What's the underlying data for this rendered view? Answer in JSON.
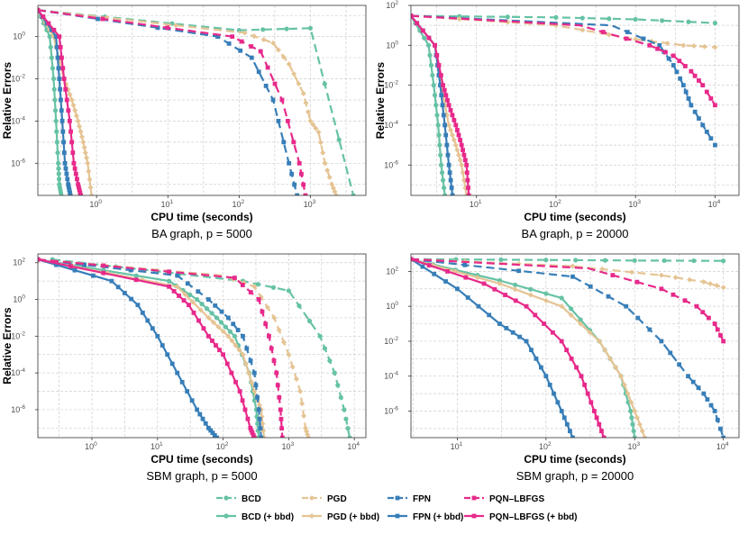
{
  "chart_data": [
    {
      "type": "line",
      "caption": "BA graph, p = 5000",
      "xlabel": "CPU time (seconds)",
      "ylabel": "Relative Errors",
      "xscale": "log",
      "yscale": "log",
      "xlim": [
        0.15,
        6000
      ],
      "ylim": [
        3e-08,
        30
      ],
      "xticks": [
        {
          "v": 1,
          "label": "10",
          "sup": "0"
        },
        {
          "v": 10,
          "label": "10",
          "sup": "1"
        },
        {
          "v": 100,
          "label": "10",
          "sup": "2"
        },
        {
          "v": 1000,
          "label": "10",
          "sup": "3"
        }
      ],
      "yticks": [
        {
          "v": 1,
          "label": "10",
          "sup": "0"
        },
        {
          "v": 0.01,
          "label": "10",
          "sup": "-2"
        },
        {
          "v": 0.0001,
          "label": "10",
          "sup": "-4"
        },
        {
          "v": 1e-06,
          "label": "10",
          "sup": "-6"
        }
      ],
      "show_ylabel": true,
      "series": [
        {
          "method": "BCD",
          "bbd": false,
          "x": [
            0.15,
            100,
            1000,
            4000
          ],
          "y": [
            18,
            2,
            2.5,
            3e-08
          ]
        },
        {
          "method": "BCD",
          "bbd": true,
          "x": [
            0.15,
            0.22,
            0.25,
            0.27,
            0.29,
            0.3,
            0.32
          ],
          "y": [
            18,
            1,
            0.01,
            0.0001,
            1e-06,
            1e-07,
            3e-08
          ]
        },
        {
          "method": "PGD",
          "bbd": false,
          "x": [
            0.15,
            120,
            300,
            500,
            800,
            1000,
            1300,
            1600,
            2000,
            2300
          ],
          "y": [
            18,
            1.5,
            0.5,
            0.05,
            0.002,
            0.0001,
            3e-05,
            1e-06,
            1e-07,
            3e-08
          ]
        },
        {
          "method": "PGD",
          "bbd": true,
          "x": [
            0.15,
            0.25,
            0.35,
            0.45,
            0.55,
            0.65,
            0.75,
            0.85
          ],
          "y": [
            18,
            1,
            0.01,
            0.001,
            0.0001,
            1e-05,
            1e-06,
            3e-08
          ]
        },
        {
          "method": "FPN",
          "bbd": false,
          "x": [
            0.15,
            50,
            150,
            300,
            500,
            650
          ],
          "y": [
            18,
            1,
            0.1,
            0.001,
            1e-06,
            3e-08
          ]
        },
        {
          "method": "FPN",
          "bbd": true,
          "x": [
            0.15,
            0.27,
            0.3,
            0.33,
            0.36,
            0.4,
            0.43
          ],
          "y": [
            18,
            1,
            0.01,
            0.0001,
            1e-06,
            1e-07,
            3e-08
          ]
        },
        {
          "method": "PQN–LBFGS",
          "bbd": false,
          "x": [
            0.15,
            80,
            200,
            400,
            700,
            850
          ],
          "y": [
            18,
            1,
            0.2,
            0.001,
            1e-06,
            3e-08
          ]
        },
        {
          "method": "PQN–LBFGS",
          "bbd": true,
          "x": [
            0.15,
            0.3,
            0.35,
            0.42,
            0.48,
            0.55,
            0.6
          ],
          "y": [
            18,
            1,
            0.01,
            0.0001,
            1e-06,
            1e-07,
            3e-08
          ]
        }
      ]
    },
    {
      "type": "line",
      "caption": "BA graph, p = 20000",
      "xlabel": "CPU time (seconds)",
      "ylabel": "Relative Errors",
      "xscale": "log",
      "yscale": "log",
      "xlim": [
        1.5,
        20000
      ],
      "ylim": [
        3e-08,
        100
      ],
      "xticks": [
        {
          "v": 10,
          "label": "10",
          "sup": "1"
        },
        {
          "v": 100,
          "label": "10",
          "sup": "2"
        },
        {
          "v": 1000,
          "label": "10",
          "sup": "3"
        },
        {
          "v": 10000,
          "label": "10",
          "sup": "4"
        }
      ],
      "yticks": [
        {
          "v": 100,
          "label": "10",
          "sup": "2"
        },
        {
          "v": 1,
          "label": "10",
          "sup": "0"
        },
        {
          "v": 0.01,
          "label": "10",
          "sup": "-2"
        },
        {
          "v": 0.0001,
          "label": "10",
          "sup": "-4"
        },
        {
          "v": 1e-06,
          "label": "10",
          "sup": "-6"
        }
      ],
      "show_ylabel": true,
      "series": [
        {
          "method": "BCD",
          "bbd": false,
          "x": [
            1.5,
            100,
            1000,
            10000
          ],
          "y": [
            30,
            25,
            20,
            13
          ]
        },
        {
          "method": "BCD",
          "bbd": true,
          "x": [
            1.5,
            2.5,
            2.9,
            3.3,
            3.6,
            4
          ],
          "y": [
            30,
            1,
            0.01,
            0.0001,
            1e-06,
            3e-08
          ]
        },
        {
          "method": "PGD",
          "bbd": false,
          "x": [
            1.5,
            100,
            1000,
            4000,
            10000
          ],
          "y": [
            30,
            10,
            2,
            1,
            0.8
          ]
        },
        {
          "method": "PGD",
          "bbd": true,
          "x": [
            1.5,
            3,
            3.6,
            4.5,
            5.5,
            6.5,
            7.5
          ],
          "y": [
            30,
            1,
            0.01,
            0.0001,
            1e-05,
            1e-06,
            3e-08
          ]
        },
        {
          "method": "FPN",
          "bbd": false,
          "x": [
            1.5,
            500,
            2000,
            3000,
            4000,
            5000,
            7000,
            10000
          ],
          "y": [
            30,
            10,
            1,
            0.1,
            0.01,
            0.001,
            0.0001,
            1e-05
          ]
        },
        {
          "method": "FPN",
          "bbd": true,
          "x": [
            1.5,
            3,
            3.5,
            4,
            4.5,
            5
          ],
          "y": [
            30,
            1,
            0.01,
            0.0001,
            1e-06,
            3e-08
          ]
        },
        {
          "method": "PQN–LBFGS",
          "bbd": false,
          "x": [
            1.5,
            200,
            1500,
            3000,
            5000,
            7000,
            10000
          ],
          "y": [
            30,
            10,
            1,
            0.3,
            0.05,
            0.01,
            0.001
          ]
        },
        {
          "method": "PQN–LBFGS",
          "bbd": true,
          "x": [
            1.5,
            3,
            3.8,
            4.5,
            5.5,
            6.5,
            7.5,
            8
          ],
          "y": [
            30,
            1,
            0.01,
            0.001,
            0.0001,
            1e-05,
            1e-06,
            3e-08
          ]
        }
      ]
    },
    {
      "type": "line",
      "caption": "SBM graph, p = 5000",
      "xlabel": "CPU time (seconds)",
      "ylabel": "Relative Errors",
      "xscale": "log",
      "yscale": "log",
      "xlim": [
        0.15,
        15000
      ],
      "ylim": [
        3e-08,
        300
      ],
      "xticks": [
        {
          "v": 1,
          "label": "10",
          "sup": "0"
        },
        {
          "v": 10,
          "label": "10",
          "sup": "1"
        },
        {
          "v": 100,
          "label": "10",
          "sup": "2"
        },
        {
          "v": 1000,
          "label": "10",
          "sup": "3"
        },
        {
          "v": 10000,
          "label": "10",
          "sup": "4"
        }
      ],
      "yticks": [
        {
          "v": 100,
          "label": "10",
          "sup": "2"
        },
        {
          "v": 1,
          "label": "10",
          "sup": "0"
        },
        {
          "v": 0.01,
          "label": "10",
          "sup": "-2"
        },
        {
          "v": 0.0001,
          "label": "10",
          "sup": "-4"
        },
        {
          "v": 1e-06,
          "label": "10",
          "sup": "-6"
        }
      ],
      "show_ylabel": true,
      "series": [
        {
          "method": "BCD",
          "bbd": false,
          "x": [
            0.25,
            200,
            1000,
            3000,
            5000,
            7000,
            8500
          ],
          "y": [
            150,
            10,
            3,
            0.01,
            0.0001,
            1e-06,
            3e-08
          ]
        },
        {
          "method": "BCD",
          "bbd": true,
          "x": [
            0.15,
            15,
            40,
            80,
            150,
            250,
            320,
            350
          ],
          "y": [
            150,
            10,
            1,
            0.1,
            0.01,
            0.0001,
            1e-06,
            3e-08
          ]
        },
        {
          "method": "PGD",
          "bbd": false,
          "x": [
            0.15,
            100,
            300,
            600,
            1000,
            1500,
            1800,
            2000
          ],
          "y": [
            150,
            20,
            5,
            0.1,
            0.001,
            1e-05,
            1e-07,
            3e-08
          ]
        },
        {
          "method": "PGD",
          "bbd": true,
          "x": [
            0.15,
            20,
            60,
            120,
            200,
            300,
            380,
            420
          ],
          "y": [
            150,
            5,
            0.1,
            0.01,
            0.001,
            1e-05,
            1e-06,
            3e-08
          ]
        },
        {
          "method": "FPN",
          "bbd": false,
          "x": [
            0.15,
            20,
            60,
            120,
            200,
            300,
            350,
            380
          ],
          "y": [
            150,
            20,
            1,
            0.1,
            0.01,
            0.0001,
            1e-06,
            3e-08
          ]
        },
        {
          "method": "FPN",
          "bbd": true,
          "x": [
            0.15,
            2,
            5,
            10,
            20,
            40,
            60,
            80
          ],
          "y": [
            150,
            10,
            0.5,
            0.01,
            0.0001,
            1e-06,
            1e-07,
            3e-08
          ]
        },
        {
          "method": "PQN–LBFGS",
          "bbd": false,
          "x": [
            0.15,
            150,
            350,
            500,
            650,
            750,
            800
          ],
          "y": [
            150,
            15,
            1,
            0.01,
            0.0001,
            1e-06,
            3e-08
          ]
        },
        {
          "method": "PQN–LBFGS",
          "bbd": true,
          "x": [
            0.15,
            15,
            30,
            60,
            100,
            180,
            260,
            300
          ],
          "y": [
            150,
            5,
            0.5,
            0.01,
            0.001,
            1e-05,
            1e-07,
            3e-08
          ]
        }
      ]
    },
    {
      "type": "line",
      "caption": "SBM graph, p = 20000",
      "xlabel": "CPU time (seconds)",
      "ylabel": "",
      "xscale": "log",
      "yscale": "log",
      "xlim": [
        3,
        15000
      ],
      "ylim": [
        3e-08,
        1000
      ],
      "xticks": [
        {
          "v": 10,
          "label": "10",
          "sup": "1"
        },
        {
          "v": 100,
          "label": "10",
          "sup": "2"
        },
        {
          "v": 1000,
          "label": "10",
          "sup": "3"
        },
        {
          "v": 10000,
          "label": "10",
          "sup": "4"
        }
      ],
      "yticks": [
        {
          "v": 100,
          "label": "10",
          "sup": "2"
        },
        {
          "v": 1,
          "label": "10",
          "sup": "0"
        },
        {
          "v": 0.01,
          "label": "10",
          "sup": "-2"
        },
        {
          "v": 0.0001,
          "label": "10",
          "sup": "-4"
        },
        {
          "v": 1e-06,
          "label": "10",
          "sup": "-6"
        }
      ],
      "show_ylabel": false,
      "series": [
        {
          "method": "BCD",
          "bbd": false,
          "x": [
            3,
            100,
            1000,
            10000
          ],
          "y": [
            500,
            450,
            420,
            400
          ]
        },
        {
          "method": "BCD",
          "bbd": true,
          "x": [
            3,
            30,
            150,
            400,
            700,
            900,
            1000
          ],
          "y": [
            500,
            30,
            3,
            0.01,
            0.0001,
            1e-06,
            3e-08
          ]
        },
        {
          "method": "PGD",
          "bbd": false,
          "x": [
            3,
            200,
            2000,
            6000,
            10000
          ],
          "y": [
            500,
            200,
            60,
            25,
            12
          ]
        },
        {
          "method": "PGD",
          "bbd": true,
          "x": [
            3,
            30,
            150,
            400,
            700,
            1000,
            1300
          ],
          "y": [
            500,
            20,
            1,
            0.01,
            0.0001,
            1e-06,
            3e-08
          ]
        },
        {
          "method": "FPN",
          "bbd": false,
          "x": [
            3,
            200,
            800,
            2000,
            4000,
            6000,
            8000,
            10000
          ],
          "y": [
            500,
            50,
            1,
            0.01,
            0.0001,
            1e-05,
            1e-06,
            3e-08
          ]
        },
        {
          "method": "FPN",
          "bbd": true,
          "x": [
            3,
            10,
            30,
            60,
            100,
            150,
            200
          ],
          "y": [
            500,
            10,
            0.1,
            0.01,
            0.0001,
            1e-06,
            3e-08
          ]
        },
        {
          "method": "PQN–LBFGS",
          "bbd": false,
          "x": [
            3,
            300,
            2000,
            5000,
            8000,
            10000
          ],
          "y": [
            500,
            150,
            10,
            1,
            0.1,
            0.01
          ]
        },
        {
          "method": "PQN–LBFGS",
          "bbd": true,
          "x": [
            3,
            20,
            60,
            150,
            250,
            350,
            450
          ],
          "y": [
            500,
            20,
            1,
            0.01,
            0.0001,
            1e-06,
            3e-08
          ]
        }
      ]
    }
  ],
  "colors": {
    "BCD": "#66c2a5",
    "PGD": "#e5c494",
    "FPN": "#377eb8",
    "PQN–LBFGS": "#e7298a"
  },
  "legend": {
    "row1": [
      {
        "label": "BCD",
        "method": "BCD",
        "bbd": false
      },
      {
        "label": "PGD",
        "method": "PGD",
        "bbd": false
      },
      {
        "label": "FPN",
        "method": "FPN",
        "bbd": false
      },
      {
        "label": "PQN–LBFGS",
        "method": "PQN–LBFGS",
        "bbd": false
      }
    ],
    "row2": [
      {
        "label": "BCD (+ bbd)",
        "method": "BCD",
        "bbd": true
      },
      {
        "label": "PGD (+ bbd)",
        "method": "PGD",
        "bbd": true
      },
      {
        "label": "FPN (+ bbd)",
        "method": "FPN",
        "bbd": true
      },
      {
        "label": "PQN–LBFGS (+ bbd)",
        "method": "PQN–LBFGS",
        "bbd": true
      }
    ]
  }
}
